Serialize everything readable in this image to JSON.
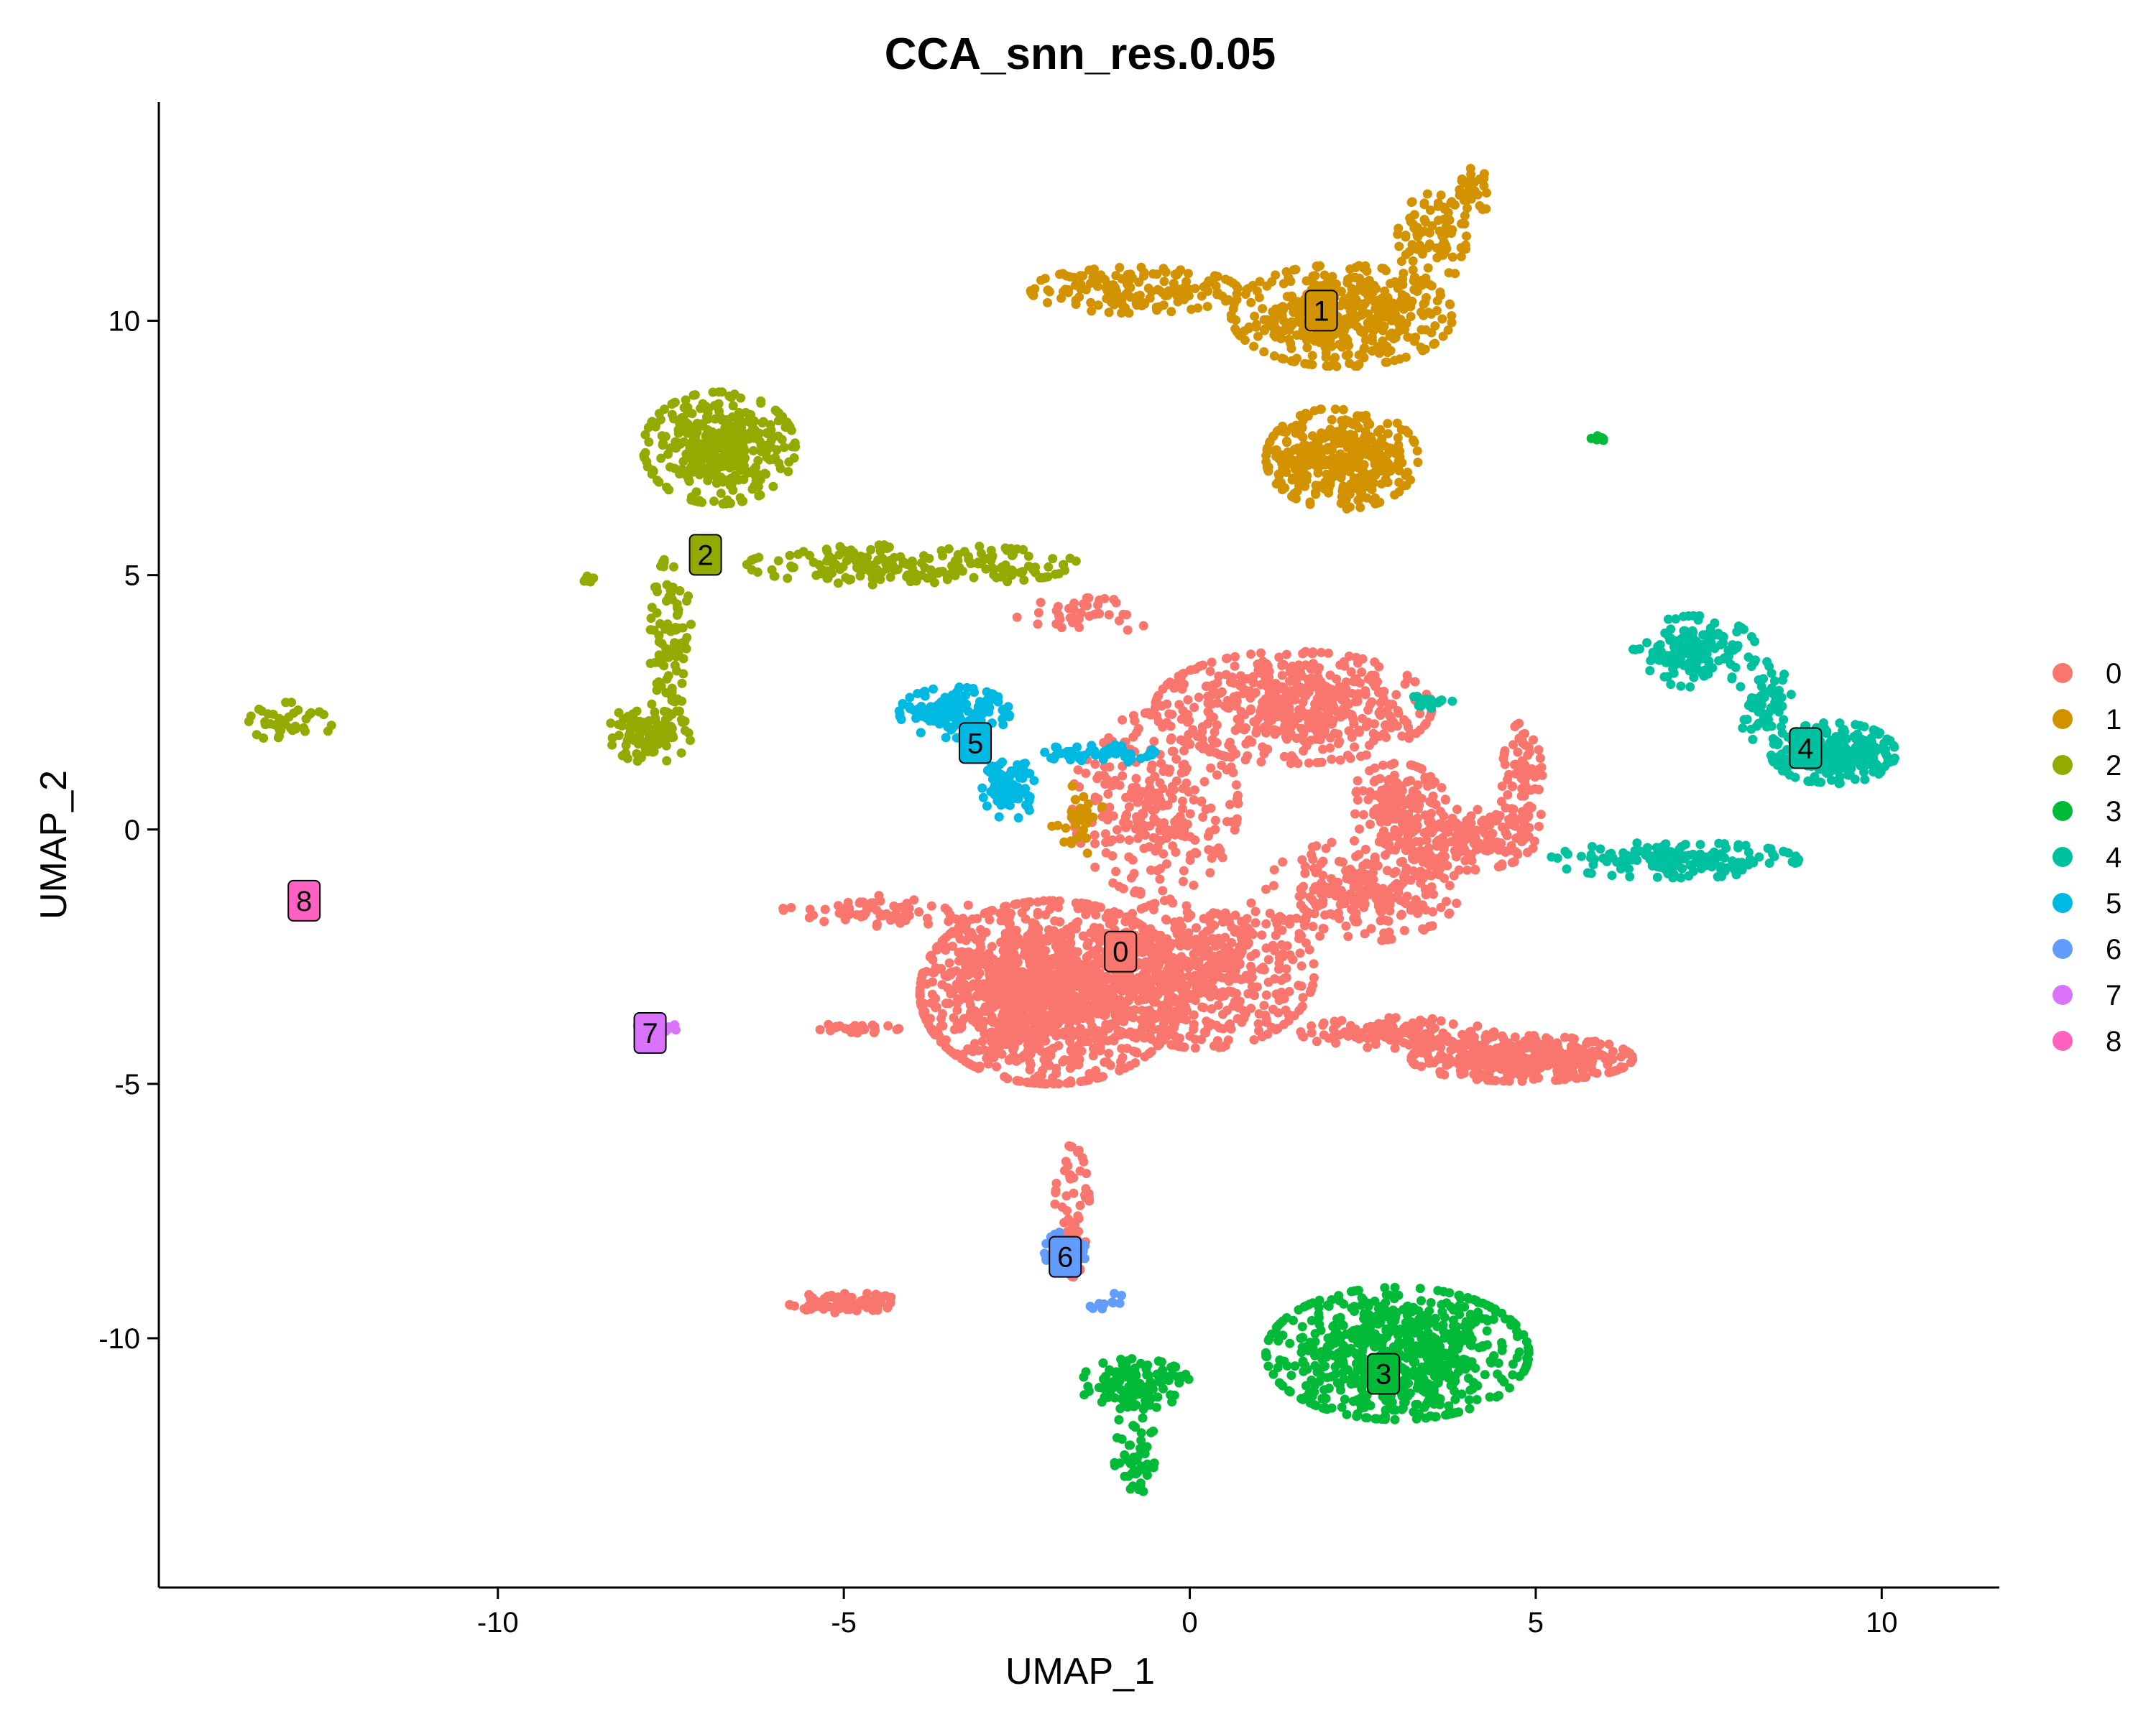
{
  "chart_data": {
    "type": "scatter",
    "title": "CCA_snn_res.0.05",
    "xlabel": "UMAP_1",
    "ylabel": "UMAP_2",
    "xlim": [
      -14.9,
      11.7
    ],
    "ylim": [
      -14.9,
      14.3
    ],
    "xticks": [
      -10,
      -5,
      0,
      5,
      10
    ],
    "yticks": [
      -10,
      -5,
      0,
      5,
      10
    ],
    "xtick_labels": [
      "-10",
      "-5",
      "0",
      "5",
      "10"
    ],
    "ytick_labels": [
      "-10",
      "-5",
      "0",
      "5",
      "10"
    ],
    "grid": false,
    "legend_position": "right",
    "legend": [
      "0",
      "1",
      "2",
      "3",
      "4",
      "5",
      "6",
      "7",
      "8"
    ],
    "series": [
      {
        "name": "0",
        "color": "#F8766D",
        "label_pos": [
          -1.0,
          -2.4
        ],
        "regions": [
          {
            "cx": -2.0,
            "cy": -3.2,
            "rx": 1.9,
            "ry": 1.8,
            "n": 1400
          },
          {
            "cx": 0.2,
            "cy": -2.8,
            "rx": 1.6,
            "ry": 1.5,
            "n": 500
          },
          {
            "cx": 1.5,
            "cy": 2.4,
            "rx": 2.0,
            "ry": 1.1,
            "n": 500
          },
          {
            "cx": -0.5,
            "cy": 0.5,
            "rx": 1.2,
            "ry": 1.8,
            "n": 280
          },
          {
            "cx": 2.5,
            "cy": -1.2,
            "rx": 1.4,
            "ry": 1.0,
            "n": 250
          },
          {
            "cx": 3.0,
            "cy": 0.5,
            "rx": 0.7,
            "ry": 0.8,
            "n": 150
          },
          {
            "cx": 4.0,
            "cy": -0.2,
            "rx": 1.0,
            "ry": 0.6,
            "n": 150
          },
          {
            "cx": 4.8,
            "cy": 0.8,
            "rx": 0.3,
            "ry": 1.3,
            "n": 100
          },
          {
            "cx": 4.8,
            "cy": -4.5,
            "rx": 1.6,
            "ry": 0.45,
            "n": 450
          },
          {
            "cx": 3.0,
            "cy": -4.0,
            "rx": 1.4,
            "ry": 0.3,
            "n": 120
          },
          {
            "cx": -1.7,
            "cy": -7.5,
            "rx": 0.25,
            "ry": 1.3,
            "n": 60
          },
          {
            "cx": -5.0,
            "cy": -9.3,
            "rx": 0.8,
            "ry": 0.2,
            "n": 80
          },
          {
            "cx": -4.5,
            "cy": -1.6,
            "rx": 1.4,
            "ry": 0.3,
            "n": 70
          },
          {
            "cx": -4.8,
            "cy": -3.9,
            "rx": 0.6,
            "ry": 0.1,
            "n": 30
          },
          {
            "cx": -1.5,
            "cy": 4.2,
            "rx": 1.0,
            "ry": 0.35,
            "n": 40
          }
        ]
      },
      {
        "name": "1",
        "color": "#D39200",
        "label_pos": [
          1.9,
          10.2
        ],
        "regions": [
          {
            "cx": 2.2,
            "cy": 10.1,
            "rx": 1.6,
            "ry": 1.0,
            "n": 450
          },
          {
            "cx": 2.2,
            "cy": 7.3,
            "rx": 1.1,
            "ry": 1.0,
            "n": 380
          },
          {
            "cx": 3.5,
            "cy": 11.6,
            "rx": 0.5,
            "ry": 0.9,
            "n": 80
          },
          {
            "cx": 4.1,
            "cy": 12.5,
            "rx": 0.25,
            "ry": 0.5,
            "n": 30
          },
          {
            "cx": -0.8,
            "cy": 10.6,
            "rx": 1.5,
            "ry": 0.45,
            "n": 160
          },
          {
            "cx": -1.6,
            "cy": 0.2,
            "rx": 0.4,
            "ry": 0.7,
            "n": 30
          }
        ]
      },
      {
        "name": "2",
        "color": "#93AA00",
        "label_pos": [
          -7.0,
          5.4
        ],
        "regions": [
          {
            "cx": -6.8,
            "cy": 7.5,
            "rx": 1.1,
            "ry": 1.1,
            "n": 380
          },
          {
            "cx": -4.0,
            "cy": 5.2,
            "rx": 2.4,
            "ry": 0.4,
            "n": 200
          },
          {
            "cx": -7.5,
            "cy": 3.6,
            "rx": 0.3,
            "ry": 1.8,
            "n": 90
          },
          {
            "cx": -7.8,
            "cy": 1.9,
            "rx": 0.6,
            "ry": 0.6,
            "n": 90
          },
          {
            "cx": -13.0,
            "cy": 2.1,
            "rx": 0.6,
            "ry": 0.4,
            "n": 40
          },
          {
            "cx": -8.7,
            "cy": 4.9,
            "rx": 0.1,
            "ry": 0.1,
            "n": 8
          }
        ]
      },
      {
        "name": "3",
        "color": "#00BA38",
        "label_pos": [
          2.8,
          -10.7
        ],
        "regions": [
          {
            "cx": 3.0,
            "cy": -10.3,
            "rx": 1.9,
            "ry": 1.3,
            "n": 700
          },
          {
            "cx": -0.8,
            "cy": -10.9,
            "rx": 0.8,
            "ry": 0.5,
            "n": 120
          },
          {
            "cx": -0.8,
            "cy": -12.2,
            "rx": 0.3,
            "ry": 0.9,
            "n": 50
          },
          {
            "cx": 5.9,
            "cy": 7.7,
            "rx": 0.1,
            "ry": 0.08,
            "n": 8
          }
        ]
      },
      {
        "name": "4",
        "color": "#00C19F",
        "label_pos": [
          8.9,
          1.6
        ],
        "regions": [
          {
            "cx": 9.3,
            "cy": 1.5,
            "rx": 0.9,
            "ry": 0.6,
            "n": 260
          },
          {
            "cx": 7.0,
            "cy": -0.6,
            "rx": 1.8,
            "ry": 0.35,
            "n": 160
          },
          {
            "cx": 7.3,
            "cy": 3.5,
            "rx": 0.9,
            "ry": 0.7,
            "n": 150
          },
          {
            "cx": 8.3,
            "cy": 2.5,
            "rx": 0.4,
            "ry": 0.8,
            "n": 60
          },
          {
            "cx": 3.4,
            "cy": 2.5,
            "rx": 0.4,
            "ry": 0.12,
            "n": 20
          }
        ]
      },
      {
        "name": "5",
        "color": "#00B9E3",
        "label_pos": [
          -3.1,
          1.7
        ],
        "regions": [
          {
            "cx": -3.4,
            "cy": 2.3,
            "rx": 0.8,
            "ry": 0.5,
            "n": 150
          },
          {
            "cx": -2.6,
            "cy": 0.8,
            "rx": 0.4,
            "ry": 0.6,
            "n": 80
          },
          {
            "cx": -1.3,
            "cy": 1.5,
            "rx": 0.8,
            "ry": 0.2,
            "n": 50
          }
        ]
      },
      {
        "name": "6",
        "color": "#619CFF",
        "label_pos": [
          -1.8,
          -8.4
        ],
        "regions": [
          {
            "cx": -1.8,
            "cy": -8.3,
            "rx": 0.3,
            "ry": 0.4,
            "n": 30
          },
          {
            "cx": -1.2,
            "cy": -9.3,
            "rx": 0.3,
            "ry": 0.2,
            "n": 10
          }
        ]
      },
      {
        "name": "7",
        "color": "#DB72FB",
        "label_pos": [
          -7.8,
          -4.0
        ],
        "regions": [
          {
            "cx": -7.7,
            "cy": -3.9,
            "rx": 0.35,
            "ry": 0.15,
            "n": 20
          }
        ]
      },
      {
        "name": "8",
        "color": "#FF61C3",
        "label_pos": [
          -12.8,
          -1.4
        ],
        "regions": [
          {
            "cx": -12.9,
            "cy": -1.4,
            "rx": 0.1,
            "ry": 0.1,
            "n": 4
          }
        ]
      }
    ]
  }
}
